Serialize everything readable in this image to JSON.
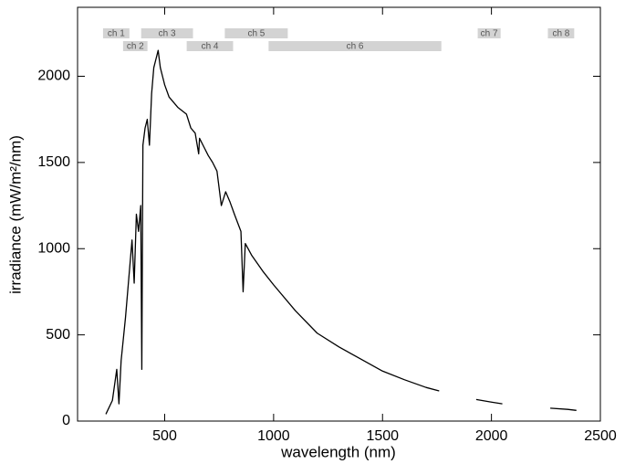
{
  "chart_data": {
    "type": "line",
    "x_label": "wavelength (nm)",
    "y_label": "irradiance (mW/m²/nm)",
    "xlim": [
      100,
      2500
    ],
    "ylim": [
      0,
      2400
    ],
    "xticks": [
      500,
      1000,
      1500,
      2000,
      2500
    ],
    "yticks": [
      0,
      500,
      1000,
      1500,
      2000
    ],
    "grid": false,
    "series": [
      {
        "name": "irradiance",
        "color": "#000000",
        "x": [
          230,
          260,
          280,
          290,
          300,
          320,
          340,
          350,
          360,
          370,
          380,
          390,
          395,
          400,
          410,
          420,
          430,
          440,
          450,
          460,
          470,
          480,
          490,
          500,
          520,
          540,
          560,
          580,
          600,
          620,
          640,
          656,
          660,
          680,
          700,
          720,
          740,
          760,
          780,
          800,
          820,
          850,
          860,
          870,
          900,
          950,
          1000,
          1100,
          1200,
          1300,
          1400,
          1500,
          1600,
          1700,
          1760,
          1850,
          1930,
          2000,
          2050,
          2150,
          2270,
          2350,
          2390
        ],
        "values": [
          40,
          120,
          300,
          100,
          350,
          600,
          900,
          1050,
          800,
          1200,
          1100,
          1250,
          300,
          1600,
          1700,
          1750,
          1600,
          1900,
          2050,
          2100,
          2150,
          2050,
          2000,
          1950,
          1880,
          1850,
          1820,
          1800,
          1780,
          1700,
          1670,
          1550,
          1640,
          1590,
          1540,
          1500,
          1450,
          1250,
          1330,
          1270,
          1200,
          1100,
          750,
          1030,
          960,
          870,
          790,
          640,
          510,
          430,
          360,
          290,
          240,
          195,
          175,
          null,
          125,
          110,
          100,
          null,
          75,
          68,
          62
        ]
      }
    ],
    "bands": [
      {
        "label": "ch 1",
        "start": 217,
        "end": 338
      },
      {
        "label": "ch 2",
        "start": 309,
        "end": 421
      },
      {
        "label": "ch 3",
        "start": 392,
        "end": 630
      },
      {
        "label": "ch 4",
        "start": 601,
        "end": 814
      },
      {
        "label": "ch 5",
        "start": 776,
        "end": 1065
      },
      {
        "label": "ch 6",
        "start": 977,
        "end": 1770
      },
      {
        "label": "ch 7",
        "start": 1937,
        "end": 2042
      },
      {
        "label": "ch 8",
        "start": 2259,
        "end": 2380
      }
    ]
  }
}
